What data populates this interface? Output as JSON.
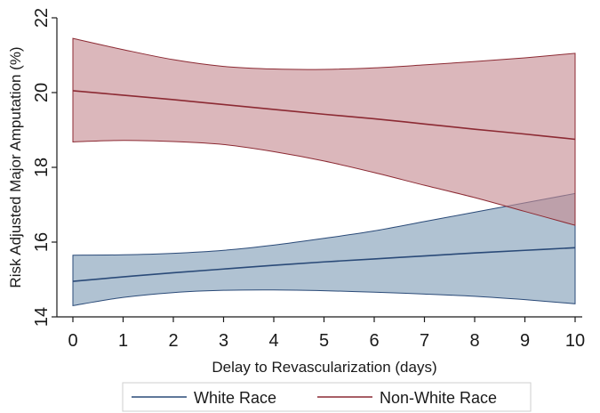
{
  "chart_data": {
    "type": "line",
    "xlabel": "Delay to Revascularization (days)",
    "ylabel": "Risk Adjusted Major Amputation (%)",
    "xlim": [
      0,
      10
    ],
    "ylim": [
      14,
      22
    ],
    "xticks": [
      0,
      1,
      2,
      3,
      4,
      5,
      6,
      7,
      8,
      9,
      10
    ],
    "yticks": [
      14,
      16,
      18,
      20,
      22
    ],
    "grid": false,
    "legend_position": "bottom",
    "x": [
      0,
      1,
      2,
      3,
      4,
      5,
      6,
      7,
      8,
      9,
      10
    ],
    "series": [
      {
        "name": "White Race",
        "color": "#2a4a78",
        "fill_color": "#7f9cb7",
        "values": [
          14.95,
          15.07,
          15.18,
          15.28,
          15.38,
          15.47,
          15.55,
          15.63,
          15.71,
          15.78,
          15.85
        ],
        "ci_upper": [
          15.65,
          15.66,
          15.7,
          15.78,
          15.92,
          16.1,
          16.3,
          16.55,
          16.8,
          17.05,
          17.3
        ],
        "ci_lower": [
          14.3,
          14.52,
          14.65,
          14.71,
          14.72,
          14.7,
          14.66,
          14.61,
          14.55,
          14.46,
          14.35
        ]
      },
      {
        "name": "Non-White Race",
        "color": "#8c2a33",
        "fill_color": "#c58a92",
        "values": [
          20.05,
          19.93,
          19.81,
          19.68,
          19.55,
          19.42,
          19.3,
          19.16,
          19.02,
          18.89,
          18.75
        ],
        "ci_upper": [
          21.45,
          21.15,
          20.88,
          20.7,
          20.63,
          20.62,
          20.66,
          20.74,
          20.83,
          20.93,
          21.05
        ],
        "ci_lower": [
          18.68,
          18.72,
          18.69,
          18.61,
          18.42,
          18.17,
          17.86,
          17.52,
          17.19,
          16.82,
          16.45
        ]
      }
    ]
  }
}
